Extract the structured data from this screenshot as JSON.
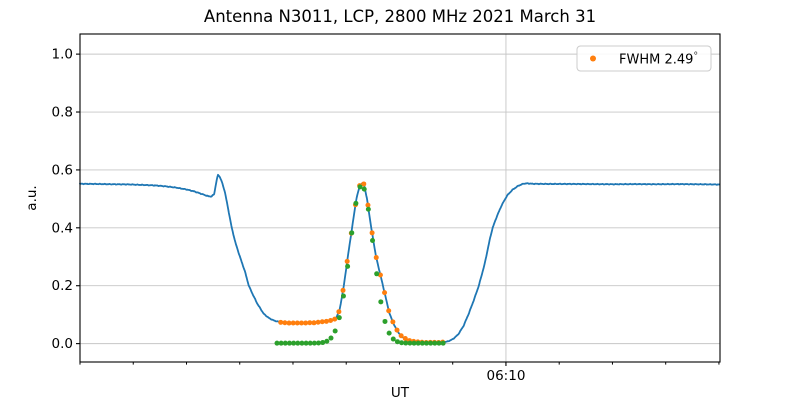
{
  "chart_data": {
    "type": "line",
    "title": "Antenna N3011, LCP, 2800 MHz 2021 March 31",
    "xlabel": "UT",
    "ylabel": "a.u.",
    "grid": true,
    "legend": {
      "position": "upper right",
      "label": "FWHM 2.49",
      "degree_symbol": "°",
      "marker": "dot",
      "marker_color": "#ff7f0e"
    },
    "colors": {
      "scan_line": "#1f77b4",
      "data_points": "#ff7f0e",
      "gaussian_fit": "#2ca02c",
      "grid": "#c6c6c6",
      "spine": "#000000"
    },
    "y_axis": {
      "lim": [
        -0.0635,
        1.0695
      ],
      "ticks": [
        0.0,
        0.2,
        0.4,
        0.6,
        0.8,
        1.0
      ],
      "tick_labels": [
        "0.0",
        "0.2",
        "0.4",
        "0.6",
        "0.8",
        "1.0"
      ]
    },
    "x_axis": {
      "note": "time axis in minutes after 04:50 UT; only 06:10 is labeled",
      "lim": [
        0,
        120.2
      ],
      "minor_tick_step": 10,
      "major_ticks": [
        {
          "t": 80,
          "label": "06:10"
        }
      ]
    },
    "series": [
      {
        "name": "drift-scan",
        "type": "line",
        "color": "#1f77b4",
        "keypoints": [
          [
            0,
            0.552
          ],
          [
            3,
            0.5515
          ],
          [
            6,
            0.5505
          ],
          [
            9,
            0.55
          ],
          [
            12,
            0.548
          ],
          [
            14,
            0.5465
          ],
          [
            16,
            0.5435
          ],
          [
            18,
            0.539
          ],
          [
            20,
            0.5325
          ],
          [
            21.5,
            0.5255
          ],
          [
            23,
            0.516
          ],
          [
            24,
            0.5095
          ],
          [
            24.7,
            0.508
          ],
          [
            25.2,
            0.517
          ],
          [
            25.6,
            0.558
          ],
          [
            25.9,
            0.583
          ],
          [
            26.2,
            0.578
          ],
          [
            26.6,
            0.561
          ],
          [
            27.2,
            0.525
          ],
          [
            27.8,
            0.468
          ],
          [
            28.5,
            0.4
          ],
          [
            29.2,
            0.348
          ],
          [
            30,
            0.302
          ],
          [
            31,
            0.248
          ],
          [
            31.7,
            0.2
          ],
          [
            32.5,
            0.168
          ],
          [
            33.3,
            0.138
          ],
          [
            34.5,
            0.103
          ],
          [
            35.5,
            0.088
          ],
          [
            36.5,
            0.079
          ],
          [
            37.6,
            0.0745
          ],
          [
            39,
            0.0715
          ],
          [
            41,
            0.0705
          ],
          [
            43,
            0.0715
          ],
          [
            45,
            0.0745
          ],
          [
            47,
            0.079
          ],
          [
            48,
            0.085
          ],
          [
            48.75,
            0.115
          ],
          [
            49.55,
            0.2
          ],
          [
            50.3,
            0.3
          ],
          [
            51.1,
            0.4
          ],
          [
            51.9,
            0.5
          ],
          [
            52.5,
            0.542
          ],
          [
            52.97,
            0.554
          ],
          [
            53.4,
            0.545
          ],
          [
            53.9,
            0.5
          ],
          [
            54.7,
            0.4
          ],
          [
            55.6,
            0.3
          ],
          [
            56.9,
            0.2
          ],
          [
            58.1,
            0.105
          ],
          [
            59.1,
            0.06
          ],
          [
            60,
            0.033
          ],
          [
            60.9,
            0.018
          ],
          [
            61.9,
            0.01
          ],
          [
            62.8,
            0.007
          ],
          [
            63.7,
            0.005
          ],
          [
            65.6,
            0.004
          ],
          [
            67.5,
            0.004
          ],
          [
            69,
            0.007
          ],
          [
            70,
            0.015
          ],
          [
            71,
            0.031
          ],
          [
            72,
            0.06
          ],
          [
            73,
            0.103
          ],
          [
            74,
            0.152
          ],
          [
            74.9,
            0.2
          ],
          [
            76,
            0.275
          ],
          [
            77,
            0.363
          ],
          [
            77.5,
            0.4
          ],
          [
            78.3,
            0.44
          ],
          [
            79.2,
            0.478
          ],
          [
            80.2,
            0.511
          ],
          [
            81.2,
            0.531
          ],
          [
            82.3,
            0.545
          ],
          [
            83.3,
            0.5525
          ],
          [
            84,
            0.5535
          ],
          [
            85,
            0.552
          ],
          [
            88,
            0.5515
          ],
          [
            92,
            0.5515
          ],
          [
            96,
            0.551
          ],
          [
            100,
            0.5505
          ],
          [
            104,
            0.551
          ],
          [
            108,
            0.5505
          ],
          [
            112,
            0.551
          ],
          [
            116,
            0.5505
          ],
          [
            120.2,
            0.5495
          ]
        ],
        "noise_amplitude": 0.0007
      },
      {
        "name": "measured-points",
        "type": "scatter",
        "color": "#ff7f0e",
        "marker_radius": 2.5,
        "t_start": 37.7,
        "t_end": 68.5,
        "t_step": 0.78,
        "keypoints": [
          [
            37.7,
            0.074
          ],
          [
            39,
            0.0715
          ],
          [
            41,
            0.0705
          ],
          [
            43,
            0.0715
          ],
          [
            45,
            0.0745
          ],
          [
            47,
            0.079
          ],
          [
            48,
            0.085
          ],
          [
            48.75,
            0.115
          ],
          [
            49.55,
            0.2
          ],
          [
            50.3,
            0.3
          ],
          [
            51.1,
            0.4
          ],
          [
            51.9,
            0.5
          ],
          [
            52.5,
            0.545
          ],
          [
            52.97,
            0.565
          ],
          [
            53.4,
            0.548
          ],
          [
            53.9,
            0.5
          ],
          [
            54.7,
            0.4
          ],
          [
            55.6,
            0.3
          ],
          [
            56.9,
            0.2
          ],
          [
            58.1,
            0.105
          ],
          [
            59.1,
            0.06
          ],
          [
            60,
            0.033
          ],
          [
            60.9,
            0.018
          ],
          [
            61.9,
            0.01
          ],
          [
            62.8,
            0.007
          ],
          [
            63.7,
            0.0055
          ],
          [
            65.6,
            0.0045
          ],
          [
            67.5,
            0.004
          ],
          [
            68.5,
            0.004
          ]
        ]
      },
      {
        "name": "gaussian-fit-points",
        "type": "scatter",
        "color": "#2ca02c",
        "marker_radius": 2.5,
        "t_start": 37.0,
        "t_end": 68.6,
        "t_step": 0.78,
        "gaussian": {
          "amplitude": 0.545,
          "center": 52.9,
          "sigma": 2.2,
          "baseline": 0.0015
        }
      }
    ]
  }
}
